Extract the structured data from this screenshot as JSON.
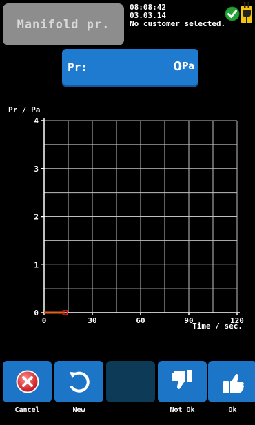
{
  "header": {
    "title": "Manifold pr.",
    "time": "08:08:42",
    "date": "03.03.14",
    "customer": "No customer selected."
  },
  "status_icons": [
    "ok-check-icon",
    "power-plug-icon"
  ],
  "reading": {
    "label": "Pr:",
    "value": "0",
    "unit": "Pa"
  },
  "chart_data": {
    "type": "line",
    "ylabel": "Pr / Pa",
    "xlabel": "Time / sec.",
    "xlim": [
      0,
      120
    ],
    "ylim": [
      0,
      4
    ],
    "x_ticks": [
      0,
      30,
      60,
      90,
      120
    ],
    "y_ticks": [
      0,
      1,
      2,
      3,
      4
    ],
    "grid": true,
    "series": [
      {
        "x": [
          0,
          13
        ],
        "y": [
          0,
          0
        ],
        "color": "#e8601c"
      }
    ]
  },
  "toolbar": {
    "buttons": [
      {
        "name": "cancel",
        "label": "Cancel",
        "icon": "cancel-icon"
      },
      {
        "name": "new",
        "label": "New",
        "icon": "refresh-icon"
      },
      {
        "name": "blank",
        "label": "",
        "icon": ""
      },
      {
        "name": "not-ok",
        "label": "Not Ok",
        "icon": "thumbs-down-icon"
      },
      {
        "name": "ok",
        "label": "Ok",
        "icon": "thumbs-up-icon"
      }
    ]
  }
}
